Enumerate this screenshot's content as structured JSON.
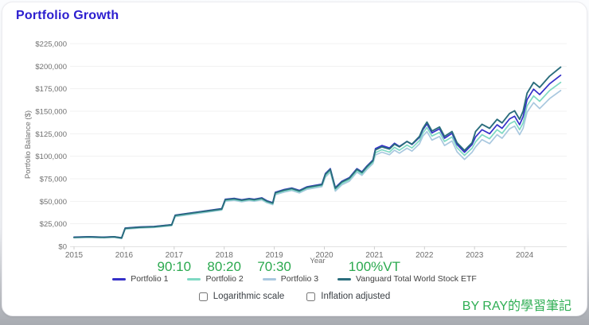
{
  "page": {
    "title": "Portfolio Growth",
    "watermark": "BY RAY的學習筆記"
  },
  "colors": {
    "title": "#2c1ecf",
    "annotation_green": "#2ba94f",
    "axis_text": "#6f6f6f",
    "grid": "#f1f1f1",
    "axis_line": "#e3e3e3",
    "tick": "#cfcfcf"
  },
  "controls": {
    "logarithmic": {
      "label": "Logarithmic scale",
      "checked": false
    },
    "inflation": {
      "label": "Inflation adjusted",
      "checked": false
    }
  },
  "chart_data": {
    "type": "line",
    "title": "Portfolio Growth",
    "xlabel": "Year",
    "ylabel": "Portfolio Balance ($)",
    "ylim": [
      0,
      225000
    ],
    "grid": true,
    "legend_position": "bottom",
    "yticks": [
      {
        "value": 0,
        "label": "$0"
      },
      {
        "value": 25000,
        "label": "$25,000"
      },
      {
        "value": 50000,
        "label": "$50,000"
      },
      {
        "value": 75000,
        "label": "$75,000"
      },
      {
        "value": 100000,
        "label": "$100,000"
      },
      {
        "value": 125000,
        "label": "$125,000"
      },
      {
        "value": 150000,
        "label": "$150,000"
      },
      {
        "value": 175000,
        "label": "$175,000"
      },
      {
        "value": 200000,
        "label": "$200,000"
      },
      {
        "value": 225000,
        "label": "$225,000"
      }
    ],
    "xticks": [
      2015,
      2016,
      2017,
      2018,
      2019,
      2020,
      2021,
      2022,
      2023,
      2024
    ],
    "annotations": [
      {
        "text": "90:10",
        "year": 2017
      },
      {
        "text": "80:20",
        "year": 2018
      },
      {
        "text": "70:30",
        "year": 2019
      },
      {
        "text": "100%VT",
        "year": 2021
      }
    ],
    "x": [
      2015.0,
      2015.3,
      2015.6,
      2015.8,
      2015.95,
      2016.02,
      2016.3,
      2016.6,
      2016.95,
      2017.02,
      2017.3,
      2017.6,
      2017.95,
      2018.02,
      2018.2,
      2018.35,
      2018.5,
      2018.6,
      2018.75,
      2018.85,
      2018.97,
      2019.02,
      2019.2,
      2019.35,
      2019.5,
      2019.65,
      2019.95,
      2020.02,
      2020.12,
      2020.22,
      2020.35,
      2020.5,
      2020.65,
      2020.75,
      2020.85,
      2020.97,
      2021.02,
      2021.15,
      2021.3,
      2021.4,
      2021.5,
      2021.65,
      2021.75,
      2021.9,
      2021.97,
      2022.05,
      2022.15,
      2022.3,
      2022.4,
      2022.55,
      2022.65,
      2022.8,
      2022.95,
      2023.02,
      2023.15,
      2023.3,
      2023.45,
      2023.55,
      2023.7,
      2023.8,
      2023.9,
      2023.97,
      2024.05,
      2024.18,
      2024.3,
      2024.5,
      2024.72
    ],
    "series": [
      {
        "name": "Portfolio 3",
        "color": "#a9c8df",
        "width": 1.7,
        "values": [
          9400,
          9900,
          9400,
          10000,
          8700,
          19100,
          20300,
          20900,
          22900,
          33000,
          35200,
          37500,
          40200,
          50000,
          51000,
          49500,
          50800,
          50000,
          51600,
          48400,
          46200,
          57300,
          60300,
          62000,
          59300,
          63300,
          66300,
          76800,
          82300,
          61300,
          68300,
          72300,
          82300,
          78800,
          85300,
          91800,
          101500,
          104600,
          101700,
          106800,
          103400,
          109000,
          105700,
          113800,
          122500,
          127500,
          118000,
          122000,
          112000,
          117000,
          105000,
          96500,
          104500,
          110500,
          118500,
          114000,
          124000,
          120000,
          130500,
          133500,
          124000,
          131000,
          149000,
          159500,
          153000,
          164000,
          173000
        ]
      },
      {
        "name": "Portfolio 2",
        "color": "#7fd9c3",
        "width": 1.7,
        "values": [
          9700,
          10200,
          9700,
          10300,
          9000,
          19500,
          20700,
          21300,
          23300,
          33600,
          35800,
          38100,
          40800,
          50900,
          51900,
          50400,
          51700,
          50900,
          52500,
          49300,
          47100,
          58400,
          61400,
          63100,
          60400,
          64400,
          67400,
          78400,
          83900,
          62900,
          69900,
          73900,
          83900,
          80400,
          86900,
          93400,
          104000,
          107300,
          104600,
          109900,
          106700,
          112500,
          109200,
          117400,
          126000,
          132000,
          122500,
          126500,
          116500,
          121500,
          109500,
          101000,
          109000,
          116000,
          124000,
          119500,
          129500,
          125500,
          136000,
          139000,
          129500,
          137000,
          156000,
          167000,
          161000,
          173000,
          182000
        ]
      },
      {
        "name": "Portfolio 1",
        "color": "#3530c8",
        "width": 1.7,
        "values": [
          10200,
          10700,
          10200,
          10800,
          9500,
          20300,
          21500,
          22100,
          24100,
          34700,
          36900,
          39200,
          41900,
          52300,
          53300,
          51800,
          53100,
          52300,
          53900,
          50700,
          48500,
          60100,
          63100,
          64800,
          62100,
          66100,
          69100,
          80800,
          86300,
          65300,
          72300,
          76300,
          86300,
          82800,
          89300,
          95800,
          108500,
          112000,
          109200,
          114500,
          111000,
          116500,
          113000,
          121000,
          129500,
          136000,
          126000,
          130500,
          120000,
          125500,
          113000,
          104500,
          113000,
          121500,
          129500,
          125000,
          135000,
          131000,
          141500,
          144500,
          135000,
          144000,
          163000,
          174500,
          168500,
          180500,
          190000
        ]
      },
      {
        "name": "Vanguard Total World Stock ETF",
        "color": "#2a6d7c",
        "width": 1.9,
        "values": [
          10000,
          10500,
          10000,
          10600,
          9300,
          20000,
          21200,
          21800,
          23800,
          34300,
          36500,
          38800,
          41500,
          51800,
          52800,
          51300,
          52600,
          51800,
          53400,
          50200,
          48000,
          59500,
          62500,
          64200,
          61500,
          65500,
          68500,
          80000,
          85500,
          64500,
          71500,
          75500,
          85500,
          82000,
          88500,
          95000,
          107000,
          110500,
          108000,
          113500,
          110500,
          116500,
          113500,
          122000,
          131000,
          138000,
          128000,
          132500,
          122000,
          127500,
          115000,
          106500,
          115000,
          127500,
          135500,
          131000,
          141000,
          137000,
          147500,
          150500,
          141000,
          150000,
          170000,
          182000,
          176500,
          189000,
          199000
        ]
      }
    ],
    "legend_order": [
      "Portfolio 1",
      "Portfolio 2",
      "Portfolio 3",
      "Vanguard Total World Stock ETF"
    ]
  }
}
